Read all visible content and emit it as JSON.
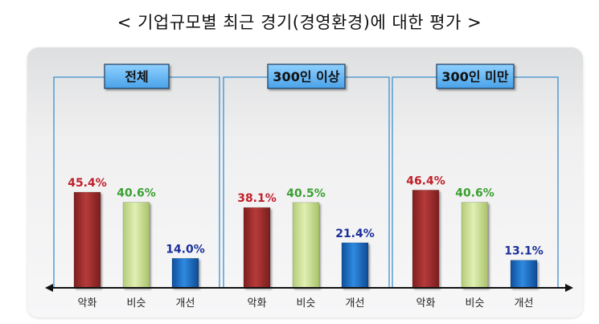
{
  "title": "< 기업규모별 최근 경기(경영환경)에 대한 평가 >",
  "chart_data": {
    "type": "bar",
    "title": "< 기업규모별 최근 경기(경영환경)에 대한 평가 >",
    "xlabel": "",
    "ylabel": "",
    "ylim": [
      0,
      100
    ],
    "unit": "%",
    "categories": [
      "악화",
      "비슷",
      "개선"
    ],
    "colors": {
      "악화": "#a83232",
      "비슷": "#cfe49b",
      "개선": "#1f73c9",
      "label_악화": "#c0202a",
      "label_비슷": "#3aa031",
      "label_개선": "#1b2f9a",
      "panel_border": "#3a8fcf",
      "tag_fill": "#56a8e8",
      "axis": "#111111"
    },
    "panels": [
      {
        "name": "전체",
        "values": [
          45.4,
          40.6,
          14.0
        ],
        "labels": [
          "45.4%",
          "40.6%",
          "14.0%"
        ]
      },
      {
        "name": "300인 이상",
        "values": [
          38.1,
          40.5,
          21.4
        ],
        "labels": [
          "38.1%",
          "40.5%",
          "21.4%"
        ]
      },
      {
        "name": "300인 미만",
        "values": [
          46.4,
          40.6,
          13.1
        ],
        "labels": [
          "46.4%",
          "40.6%",
          "13.1%"
        ]
      }
    ]
  }
}
